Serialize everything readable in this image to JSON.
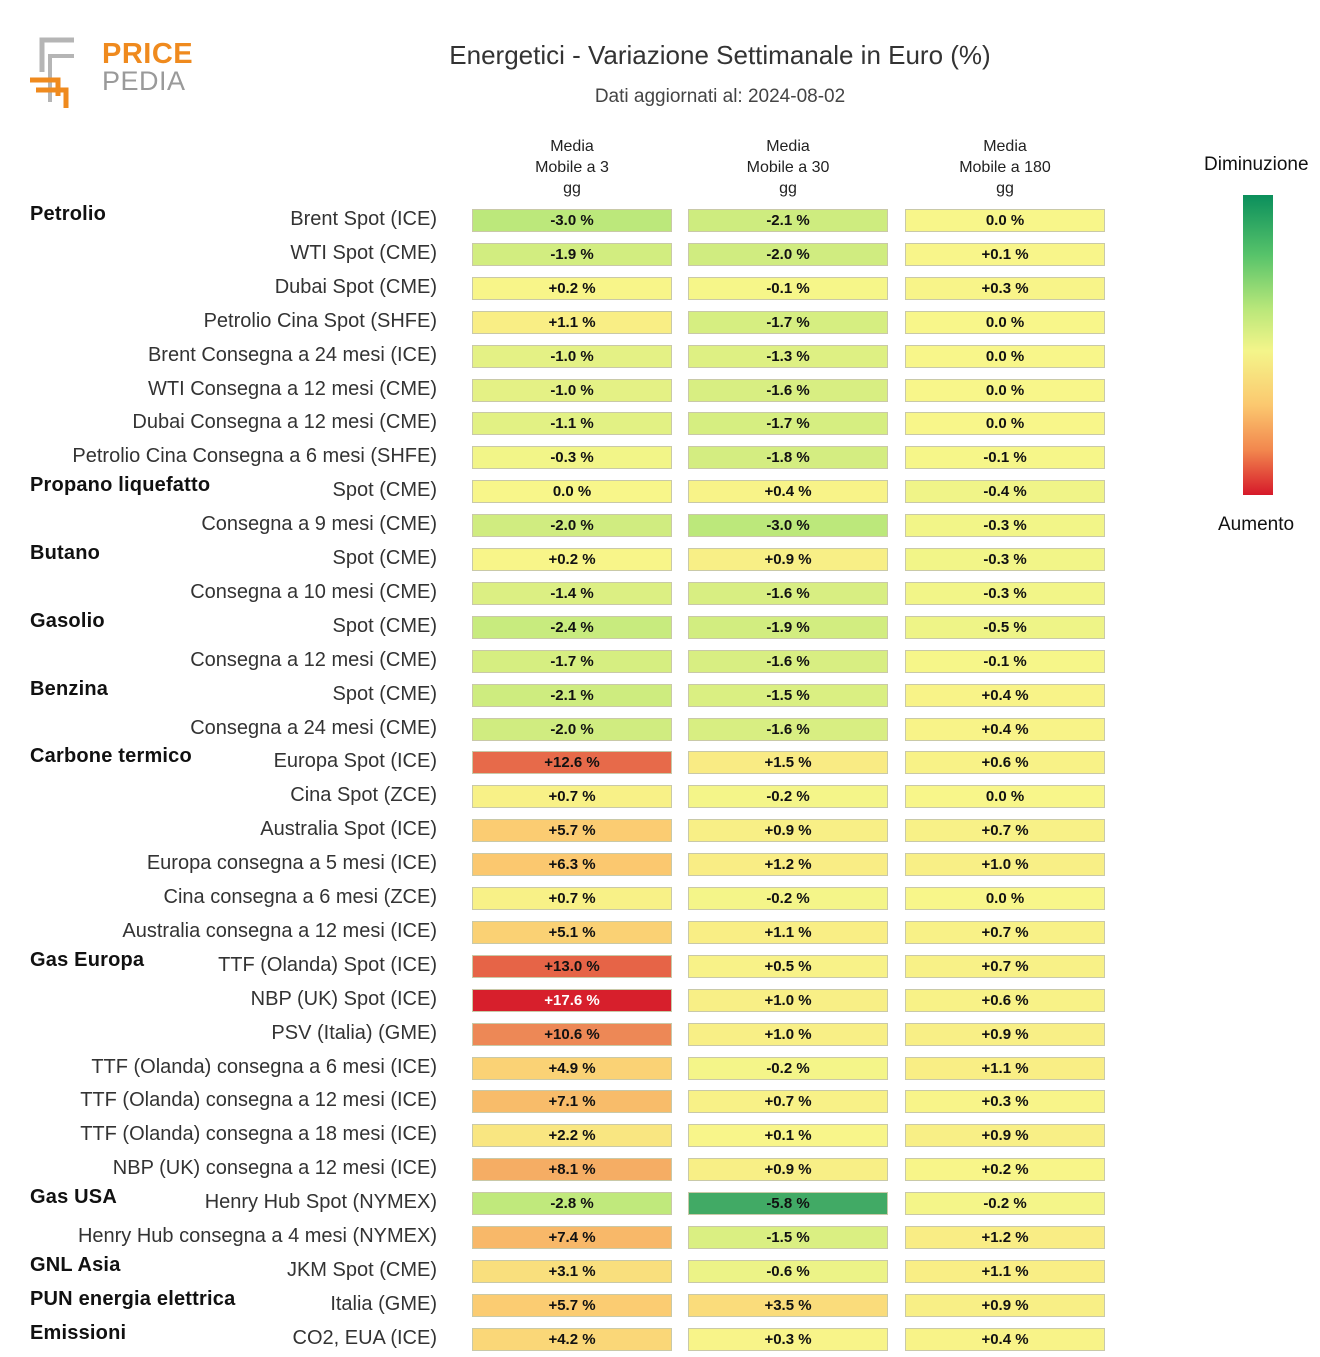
{
  "header": {
    "logo_line1": "PRICE",
    "logo_line2": "PEDIA",
    "title": "Energetici - Variazione Settimanale in Euro (%)",
    "subtitle": "Dati aggiornati al: 2024-08-02"
  },
  "legend": {
    "top_label": "Diminuzione",
    "bottom_label": "Aumento"
  },
  "chart_data": {
    "type": "heatmap",
    "title": "Energetici - Variazione Settimanale in Euro (%)",
    "subtitle": "Dati aggiornati al: 2024-08-02",
    "unit": "%",
    "columns": [
      [
        "Media",
        "Mobile a 3",
        "gg"
      ],
      [
        "Media",
        "Mobile a 30",
        "gg"
      ],
      [
        "Media",
        "Mobile a 180",
        "gg"
      ]
    ],
    "rows": [
      {
        "category": "Petrolio",
        "label": "Brent Spot (ICE)",
        "values": [
          -3.0,
          -2.1,
          0.0
        ]
      },
      {
        "category": "",
        "label": "WTI Spot (CME)",
        "values": [
          -1.9,
          -2.0,
          0.1
        ]
      },
      {
        "category": "",
        "label": "Dubai Spot (CME)",
        "values": [
          0.2,
          -0.1,
          0.3
        ]
      },
      {
        "category": "",
        "label": "Petrolio Cina Spot (SHFE)",
        "values": [
          1.1,
          -1.7,
          0.0
        ]
      },
      {
        "category": "",
        "label": "Brent Consegna a 24 mesi (ICE)",
        "values": [
          -1.0,
          -1.3,
          0.0
        ]
      },
      {
        "category": "",
        "label": "WTI Consegna a 12 mesi (CME)",
        "values": [
          -1.0,
          -1.6,
          0.0
        ]
      },
      {
        "category": "",
        "label": "Dubai Consegna a 12 mesi (CME)",
        "values": [
          -1.1,
          -1.7,
          0.0
        ]
      },
      {
        "category": "",
        "label": "Petrolio Cina Consegna a 6 mesi (SHFE)",
        "values": [
          -0.3,
          -1.8,
          -0.1
        ]
      },
      {
        "category": "Propano liquefatto",
        "label": "Spot (CME)",
        "values": [
          0.0,
          0.4,
          -0.4
        ]
      },
      {
        "category": "",
        "label": "Consegna a 9 mesi (CME)",
        "values": [
          -2.0,
          -3.0,
          -0.3
        ]
      },
      {
        "category": "Butano",
        "label": "Spot (CME)",
        "values": [
          0.2,
          0.9,
          -0.3
        ]
      },
      {
        "category": "",
        "label": "Consegna a 10 mesi (CME)",
        "values": [
          -1.4,
          -1.6,
          -0.3
        ]
      },
      {
        "category": "Gasolio",
        "label": "Spot (CME)",
        "values": [
          -2.4,
          -1.9,
          -0.5
        ]
      },
      {
        "category": "",
        "label": "Consegna a 12 mesi (CME)",
        "values": [
          -1.7,
          -1.6,
          -0.1
        ]
      },
      {
        "category": "Benzina",
        "label": "Spot (CME)",
        "values": [
          -2.1,
          -1.5,
          0.4
        ]
      },
      {
        "category": "",
        "label": "Consegna a 24 mesi (CME)",
        "values": [
          -2.0,
          -1.6,
          0.4
        ]
      },
      {
        "category": "Carbone termico",
        "label": "Europa Spot (ICE)",
        "values": [
          12.6,
          1.5,
          0.6
        ]
      },
      {
        "category": "",
        "label": "Cina Spot (ZCE)",
        "values": [
          0.7,
          -0.2,
          0.0
        ]
      },
      {
        "category": "",
        "label": "Australia Spot (ICE)",
        "values": [
          5.7,
          0.9,
          0.7
        ]
      },
      {
        "category": "",
        "label": "Europa consegna a 5 mesi (ICE)",
        "values": [
          6.3,
          1.2,
          1.0
        ]
      },
      {
        "category": "",
        "label": "Cina consegna a 6 mesi (ZCE)",
        "values": [
          0.7,
          -0.2,
          0.0
        ]
      },
      {
        "category": "",
        "label": "Australia consegna a 12 mesi (ICE)",
        "values": [
          5.1,
          1.1,
          0.7
        ]
      },
      {
        "category": "Gas Europa",
        "label": "TTF (Olanda) Spot (ICE)",
        "values": [
          13.0,
          0.5,
          0.7
        ]
      },
      {
        "category": "",
        "label": "NBP (UK) Spot (ICE)",
        "values": [
          17.6,
          1.0,
          0.6
        ]
      },
      {
        "category": "",
        "label": "PSV (Italia) (GME)",
        "values": [
          10.6,
          1.0,
          0.9
        ]
      },
      {
        "category": "",
        "label": "TTF (Olanda) consegna a 6 mesi (ICE)",
        "values": [
          4.9,
          -0.2,
          1.1
        ]
      },
      {
        "category": "",
        "label": "TTF (Olanda) consegna a 12 mesi (ICE)",
        "values": [
          7.1,
          0.7,
          0.3
        ]
      },
      {
        "category": "",
        "label": "TTF (Olanda) consegna a 18 mesi (ICE)",
        "values": [
          2.2,
          0.1,
          0.9
        ]
      },
      {
        "category": "",
        "label": "NBP (UK) consegna a 12 mesi (ICE)",
        "values": [
          8.1,
          0.9,
          0.2
        ]
      },
      {
        "category": "Gas USA",
        "label": "Henry Hub Spot (NYMEX)",
        "values": [
          -2.8,
          -5.8,
          -0.2
        ]
      },
      {
        "category": "",
        "label": "Henry Hub consegna a 4 mesi (NYMEX)",
        "values": [
          7.4,
          -1.5,
          1.2
        ]
      },
      {
        "category": "GNL Asia",
        "label": "JKM Spot (CME)",
        "values": [
          3.1,
          -0.6,
          1.1
        ]
      },
      {
        "category": "PUN energia elettrica",
        "label": "Italia (GME)",
        "values": [
          5.7,
          3.5,
          0.9
        ]
      },
      {
        "category": "Emissioni",
        "label": "CO2, EUA (ICE)",
        "values": [
          4.2,
          0.3,
          0.4
        ]
      }
    ],
    "colorscale": {
      "negative_end": "#0b8f5c",
      "mid_negative": "#b9e77a",
      "zero": "#f8f68a",
      "mid_positive": "#fbc86f",
      "positive_end": "#d6192a"
    }
  }
}
